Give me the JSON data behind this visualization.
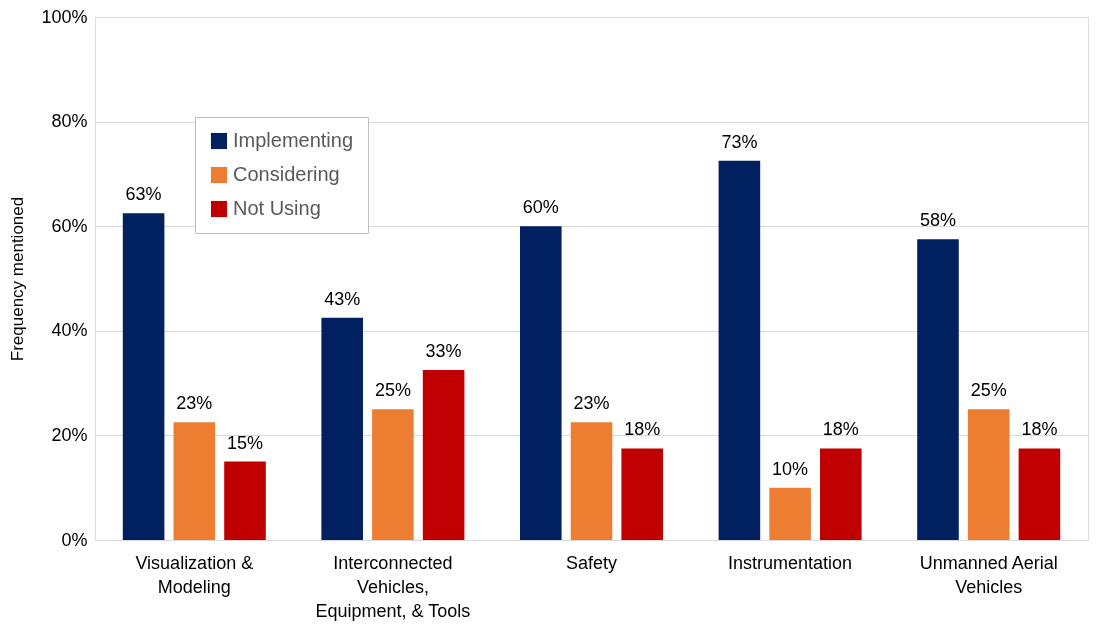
{
  "chart_data": {
    "type": "bar",
    "ylabel": "Frequency mentioned",
    "categories": [
      "Visualization & Modeling",
      "Interconnected Vehicles, Equipment, & Tools",
      "Safety",
      "Instrumentation",
      "Unmanned Aerial Vehicles"
    ],
    "series": [
      {
        "name": "Implementing",
        "color": "#002060",
        "values": [
          62.5,
          42.5,
          60,
          72.5,
          57.5
        ],
        "value_labels": [
          "63%",
          "43%",
          "60%",
          "73%",
          "58%"
        ]
      },
      {
        "name": "Considering",
        "color": "#ed7d31",
        "values": [
          22.5,
          25,
          22.5,
          10,
          25
        ],
        "value_labels": [
          "23%",
          "25%",
          "23%",
          "10%",
          "25%"
        ]
      },
      {
        "name": "Not  Using",
        "color": "#c00000",
        "values": [
          15,
          32.5,
          17.5,
          17.5,
          17.5
        ],
        "value_labels": [
          "15%",
          "33%",
          "18%",
          "18%",
          "18%"
        ]
      }
    ],
    "ylim": [
      0,
      100
    ],
    "yticks": [
      {
        "value": 0,
        "label": "0%"
      },
      {
        "value": 20,
        "label": "20%"
      },
      {
        "value": 40,
        "label": "40%"
      },
      {
        "value": 60,
        "label": "60%"
      },
      {
        "value": 80,
        "label": "80%"
      },
      {
        "value": 100,
        "label": "100%"
      }
    ],
    "grid": "y",
    "legend": "top left"
  }
}
